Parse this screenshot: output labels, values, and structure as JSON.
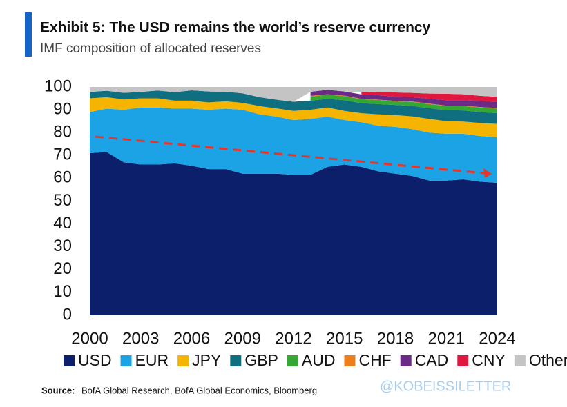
{
  "chart_data": {
    "type": "stacked_area",
    "title": "Exhibit 5: The USD remains the world’s reserve currency",
    "subtitle": "IMF composition of allocated reserves",
    "source_label": "Source:",
    "source": "BofA Global Research, BofA Global Economics, Bloomberg",
    "watermark": "@KOBEISSILETTER",
    "x": [
      2000,
      2001,
      2002,
      2003,
      2004,
      2005,
      2006,
      2007,
      2008,
      2009,
      2010,
      2011,
      2012,
      2013,
      2014,
      2015,
      2016,
      2017,
      2018,
      2019,
      2020,
      2021,
      2022,
      2023,
      2024
    ],
    "xlim": [
      2000,
      2024
    ],
    "xticks": [
      2000,
      2003,
      2006,
      2009,
      2012,
      2015,
      2018,
      2021,
      2024
    ],
    "ylim": [
      0,
      100
    ],
    "yticks": [
      0,
      10,
      20,
      30,
      40,
      50,
      60,
      70,
      80,
      90,
      100
    ],
    "series": [
      {
        "name": "USD",
        "color": "#0b1f6b",
        "values": [
          71,
          71.5,
          67,
          66,
          66,
          66.5,
          65.5,
          64,
          64,
          62,
          62,
          62,
          61.5,
          61.5,
          65,
          66,
          65,
          63,
          62,
          61,
          59,
          59,
          59.5,
          58.5,
          58
        ]
      },
      {
        "name": "EUR",
        "color": "#1ba3e6",
        "values": [
          18,
          19,
          23,
          25,
          25,
          24,
          25,
          26,
          26.5,
          28,
          26,
          25,
          24,
          24.5,
          22,
          19.5,
          19.5,
          20,
          20.5,
          20.5,
          21,
          20.5,
          20,
          20,
          20
        ]
      },
      {
        "name": "JPY",
        "color": "#f5b400",
        "values": [
          6,
          5,
          4.5,
          4,
          4,
          3.5,
          3.5,
          3.2,
          3.2,
          3,
          3.6,
          3.6,
          4,
          4,
          4,
          4,
          4,
          5,
          5.2,
          5.6,
          6,
          5.5,
          5.3,
          5.7,
          5.8
        ]
      },
      {
        "name": "GBP",
        "color": "#0f6f80",
        "values": [
          2.8,
          2.8,
          2.9,
          2.8,
          3.4,
          3.7,
          4.5,
          4.8,
          4.2,
          4.2,
          3.9,
          3.8,
          4,
          4,
          3.8,
          4.7,
          4.4,
          4.5,
          4.4,
          4.6,
          4.7,
          4.8,
          4.9,
          4.8,
          4.7
        ]
      },
      {
        "name": "AUD",
        "color": "#35a834",
        "values": [
          null,
          null,
          null,
          null,
          null,
          null,
          null,
          null,
          null,
          null,
          null,
          null,
          null,
          1.8,
          1.8,
          1.8,
          1.7,
          1.8,
          1.6,
          1.7,
          1.8,
          1.8,
          1.9,
          2,
          2.1
        ]
      },
      {
        "name": "CHF",
        "color": "#f07d1b",
        "values": [
          null,
          null,
          null,
          null,
          null,
          null,
          null,
          null,
          null,
          null,
          null,
          null,
          null,
          0.3,
          0.2,
          0.2,
          0.2,
          0.1,
          0.2,
          0.2,
          0.2,
          0.2,
          0.2,
          0.2,
          0.2
        ]
      },
      {
        "name": "CAD",
        "color": "#6b2a86",
        "values": [
          null,
          null,
          null,
          null,
          null,
          null,
          null,
          null,
          null,
          null,
          null,
          null,
          null,
          1.8,
          1.9,
          1.8,
          1.9,
          2,
          1.8,
          1.9,
          2.1,
          2.4,
          2.4,
          2.6,
          2.7
        ]
      },
      {
        "name": "CNY",
        "color": "#e0173f",
        "values": [
          null,
          null,
          null,
          null,
          null,
          null,
          null,
          null,
          null,
          null,
          null,
          null,
          null,
          null,
          null,
          null,
          1.1,
          1.2,
          1.9,
          1.9,
          2.3,
          2.8,
          2.6,
          2.3,
          2.2
        ]
      },
      {
        "name": "Other",
        "color": "#c4c4c4",
        "values": [
          2.2,
          1.7,
          2.6,
          2.2,
          1.6,
          2.3,
          1.5,
          2,
          2.1,
          2.8,
          4.5,
          5.6,
          6.5,
          2.1,
          1.3,
          2,
          2.2,
          2.4,
          2.4,
          2.6,
          2.9,
          3,
          3.2,
          3.9,
          4.3
        ]
      }
    ]
  }
}
